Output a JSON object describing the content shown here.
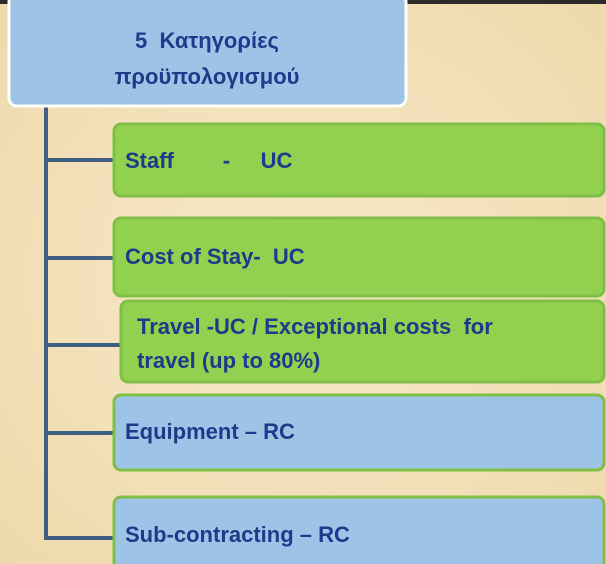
{
  "root": {
    "lines": [
      "5  Κατηγορίες",
      "προϋπολογισμού"
    ]
  },
  "nodes": [
    {
      "lines": [
        "Staff        -     UC"
      ]
    },
    {
      "lines": [
        "Cost of Stay-  UC"
      ]
    },
    {
      "lines": [
        "Travel -UC / Exceptional costs  for",
        "travel (up to 80%)"
      ]
    },
    {
      "lines": [
        "Equipment – RC"
      ]
    },
    {
      "lines": [
        "Sub-contracting – RC"
      ]
    }
  ]
}
